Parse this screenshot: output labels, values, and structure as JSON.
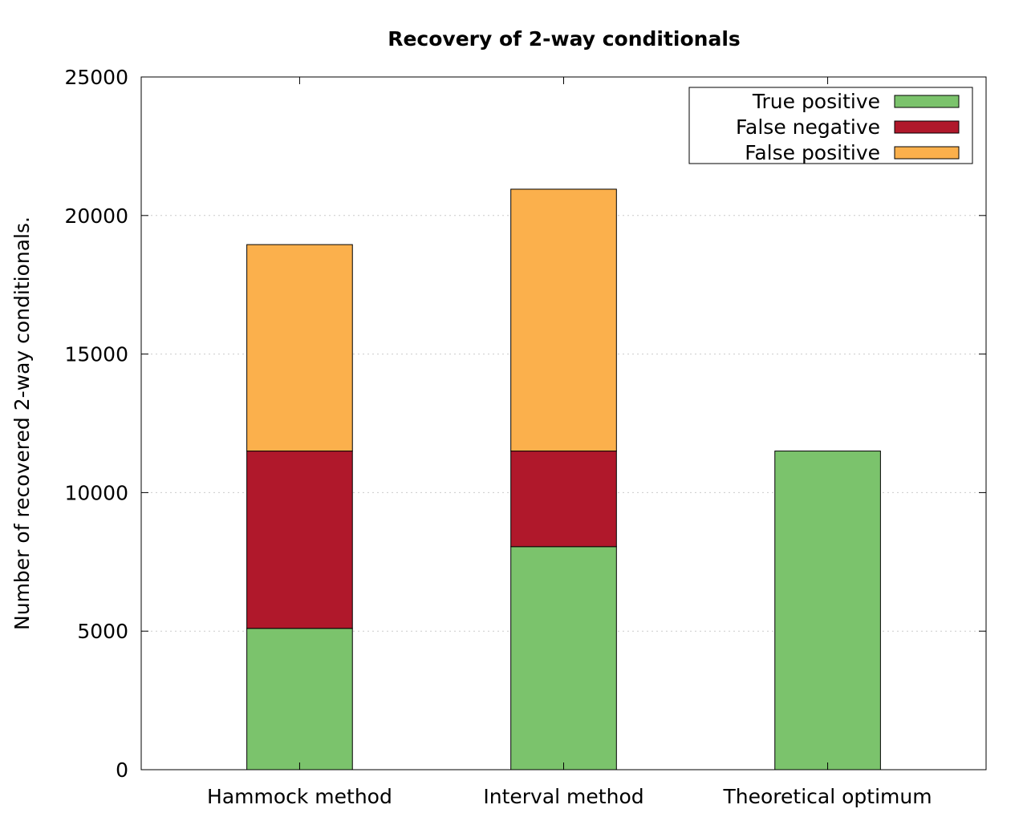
{
  "chart_data": {
    "type": "bar",
    "stacked": true,
    "title": "Recovery of 2-way conditionals",
    "xlabel": "",
    "ylabel": "Number of recovered 2-way conditionals.",
    "ylim": [
      0,
      25000
    ],
    "yticks": [
      0,
      5000,
      10000,
      15000,
      20000,
      25000
    ],
    "grid": "horizontal dotted",
    "legend_position": "top-right",
    "categories": [
      "Hammock method",
      "Interval method",
      "Theoretical optimum"
    ],
    "series": [
      {
        "name": "True positive",
        "color": "#7bc36c",
        "values": [
          5100,
          8050,
          11500
        ]
      },
      {
        "name": "False negative",
        "color": "#b0182b",
        "values": [
          6400,
          3450,
          0
        ]
      },
      {
        "name": "False positive",
        "color": "#fbb04c",
        "values": [
          7450,
          9450,
          0
        ]
      }
    ]
  }
}
